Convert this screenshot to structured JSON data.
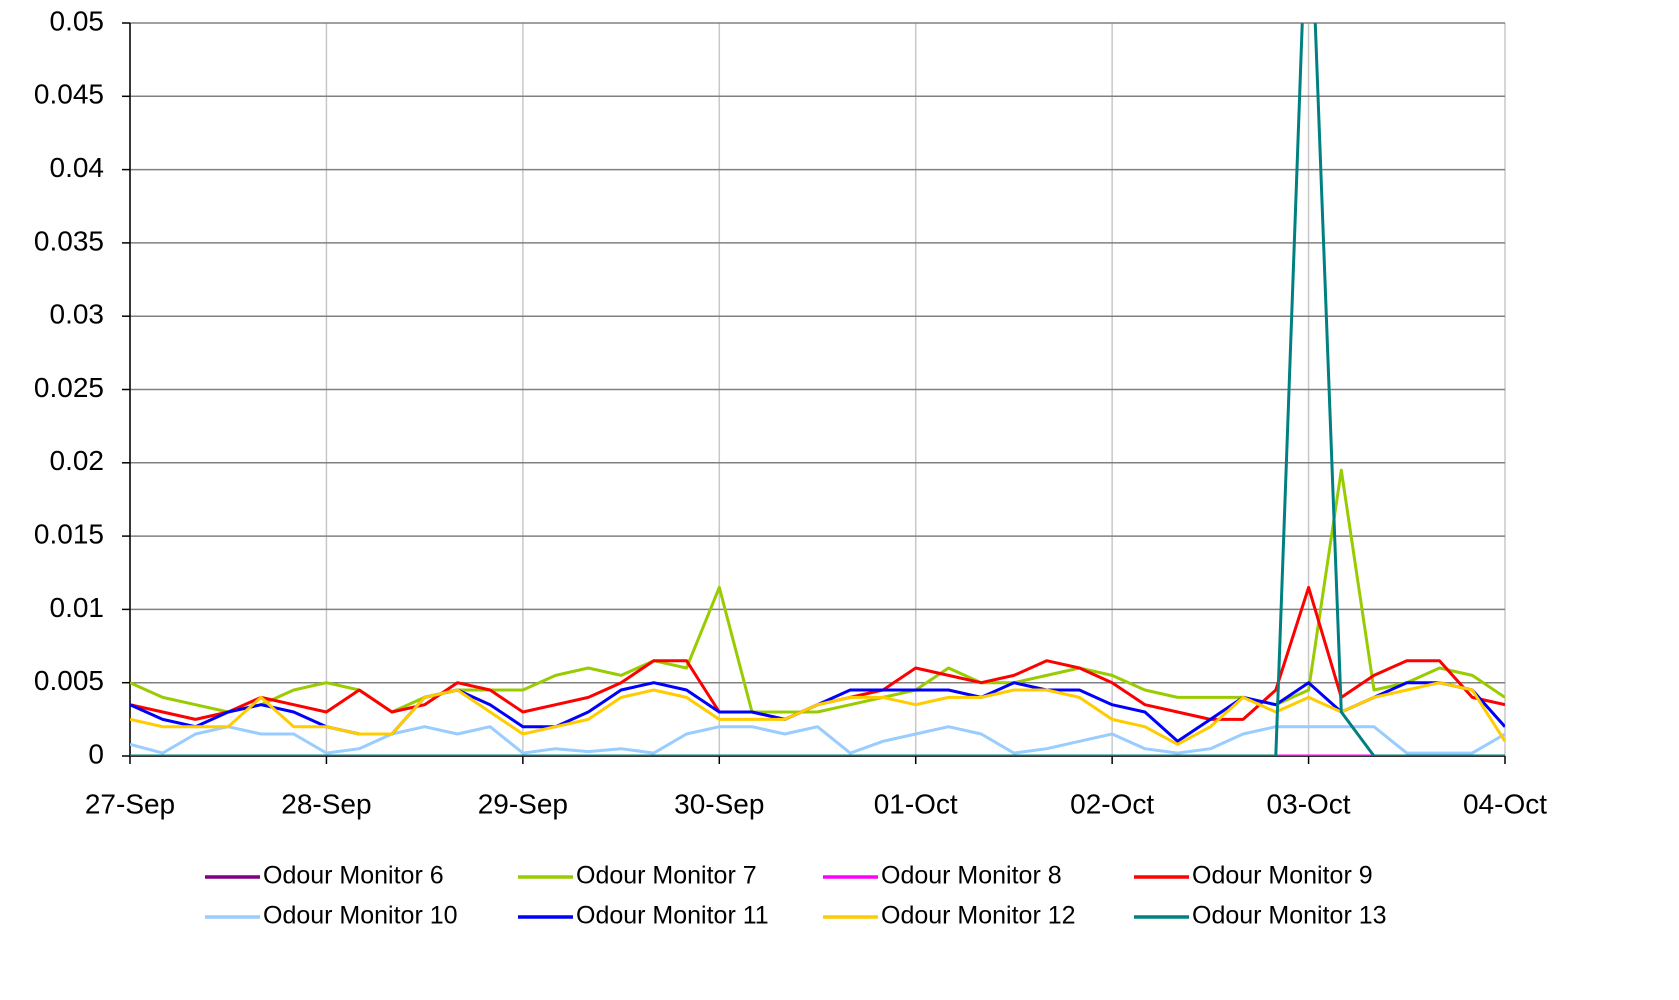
{
  "chart_data": {
    "type": "line",
    "x": [
      0,
      4,
      8,
      12,
      16,
      20,
      24,
      28,
      32,
      36,
      40,
      44,
      48,
      52,
      56,
      60,
      64,
      68,
      72,
      76,
      80,
      84,
      88,
      92,
      96,
      100,
      104,
      108,
      112,
      116,
      120,
      124,
      128,
      132,
      136,
      140,
      144,
      148,
      152,
      156,
      160,
      164,
      168
    ],
    "xlim": [
      0,
      168
    ],
    "xticks": [
      {
        "value": 0,
        "label": "27-Sep"
      },
      {
        "value": 24,
        "label": "28-Sep"
      },
      {
        "value": 48,
        "label": "29-Sep"
      },
      {
        "value": 72,
        "label": "30-Sep"
      },
      {
        "value": 96,
        "label": "01-Oct"
      },
      {
        "value": 120,
        "label": "02-Oct"
      },
      {
        "value": 144,
        "label": "03-Oct"
      },
      {
        "value": 168,
        "label": "04-Oct"
      }
    ],
    "ylim": [
      0,
      0.05
    ],
    "yticks": [
      0,
      0.005,
      0.01,
      0.015,
      0.02,
      0.025,
      0.03,
      0.035,
      0.04,
      0.045,
      0.05
    ],
    "grid": true,
    "legend": "bottom",
    "series": [
      {
        "name": "Odour Monitor 6",
        "color": "#800080",
        "values": [
          0,
          0,
          0,
          0,
          0,
          0,
          0,
          0,
          0,
          0,
          0,
          0,
          0,
          0,
          0,
          0,
          0,
          0,
          0,
          0,
          0,
          0,
          0,
          0,
          0,
          0,
          0,
          0,
          0,
          0,
          0,
          0,
          0,
          0,
          0,
          0,
          0,
          0,
          0,
          0,
          0,
          0,
          0
        ]
      },
      {
        "name": "Odour Monitor 7",
        "color": "#99cc00",
        "values": [
          0.005,
          0.004,
          0.0035,
          0.003,
          0.0035,
          0.0045,
          0.005,
          0.0045,
          0.003,
          0.004,
          0.0045,
          0.0045,
          0.0045,
          0.0055,
          0.006,
          0.0055,
          0.0065,
          0.006,
          0.0115,
          0.003,
          0.003,
          0.003,
          0.0035,
          0.004,
          0.0045,
          0.006,
          0.005,
          0.005,
          0.0055,
          0.006,
          0.0055,
          0.0045,
          0.004,
          0.004,
          0.004,
          0.0035,
          0.0045,
          0.0195,
          0.0045,
          0.005,
          0.006,
          0.0055,
          0.004
        ]
      },
      {
        "name": "Odour Monitor 8",
        "color": "#ff00ff",
        "values": [
          0,
          0,
          0,
          0,
          0,
          0,
          0,
          0,
          0,
          0,
          0,
          0,
          0,
          0,
          0,
          0,
          0,
          0,
          0,
          0,
          0,
          0,
          0,
          0,
          0,
          0,
          0,
          0,
          0,
          0,
          0,
          0,
          0,
          0,
          0,
          0,
          0,
          0,
          0,
          0,
          0,
          0,
          0
        ]
      },
      {
        "name": "Odour Monitor 9",
        "color": "#ff0000",
        "values": [
          0.0035,
          0.003,
          0.0025,
          0.003,
          0.004,
          0.0035,
          0.003,
          0.0045,
          0.003,
          0.0035,
          0.005,
          0.0045,
          0.003,
          0.0035,
          0.004,
          0.005,
          0.0065,
          0.0065,
          0.003,
          0.003,
          0.0025,
          0.0035,
          0.004,
          0.0045,
          0.006,
          0.0055,
          0.005,
          0.0055,
          0.0065,
          0.006,
          0.005,
          0.0035,
          0.003,
          0.0025,
          0.0025,
          0.0045,
          0.0115,
          0.004,
          0.0055,
          0.0065,
          0.0065,
          0.004,
          0.0035
        ]
      },
      {
        "name": "Odour Monitor 10",
        "color": "#99ccff",
        "values": [
          0.0008,
          0.0002,
          0.0015,
          0.002,
          0.0015,
          0.0015,
          0.0002,
          0.0005,
          0.0015,
          0.002,
          0.0015,
          0.002,
          0.0002,
          0.0005,
          0.0003,
          0.0005,
          0.0002,
          0.0015,
          0.002,
          0.002,
          0.0015,
          0.002,
          0.0002,
          0.001,
          0.0015,
          0.002,
          0.0015,
          0.0002,
          0.0005,
          0.001,
          0.0015,
          0.0005,
          0.0002,
          0.0005,
          0.0015,
          0.002,
          0.002,
          0.002,
          0.002,
          0.0002,
          0.0002,
          0.0002,
          0.0015
        ]
      },
      {
        "name": "Odour Monitor 11",
        "color": "#0000ff",
        "values": [
          0.0035,
          0.0025,
          0.002,
          0.003,
          0.0035,
          0.003,
          0.002,
          0.0015,
          0.0015,
          0.004,
          0.0045,
          0.0035,
          0.002,
          0.002,
          0.003,
          0.0045,
          0.005,
          0.0045,
          0.003,
          0.003,
          0.0025,
          0.0035,
          0.0045,
          0.0045,
          0.0045,
          0.0045,
          0.004,
          0.005,
          0.0045,
          0.0045,
          0.0035,
          0.003,
          0.001,
          0.0025,
          0.004,
          0.0035,
          0.005,
          0.003,
          0.004,
          0.005,
          0.005,
          0.0045,
          0.002
        ]
      },
      {
        "name": "Odour Monitor 12",
        "color": "#ffcc00",
        "values": [
          0.0025,
          0.002,
          0.002,
          0.002,
          0.004,
          0.002,
          0.002,
          0.0015,
          0.0015,
          0.004,
          0.0045,
          0.003,
          0.0015,
          0.002,
          0.0025,
          0.004,
          0.0045,
          0.004,
          0.0025,
          0.0025,
          0.0025,
          0.0035,
          0.004,
          0.004,
          0.0035,
          0.004,
          0.004,
          0.0045,
          0.0045,
          0.004,
          0.0025,
          0.002,
          0.0008,
          0.002,
          0.004,
          0.003,
          0.004,
          0.003,
          0.004,
          0.0045,
          0.005,
          0.0045,
          0.001
        ]
      },
      {
        "name": "Odour Monitor 13",
        "color": "#008080",
        "values": [
          0,
          0,
          0,
          0,
          0,
          0,
          0,
          0,
          0,
          0,
          0,
          0,
          0,
          0,
          0,
          0,
          0,
          0,
          0,
          0,
          0,
          0,
          0,
          0,
          0,
          0,
          0,
          0,
          0,
          0,
          0,
          0,
          0,
          0,
          0,
          0,
          0.062,
          0.003,
          0,
          0,
          0,
          0,
          0
        ]
      }
    ]
  }
}
